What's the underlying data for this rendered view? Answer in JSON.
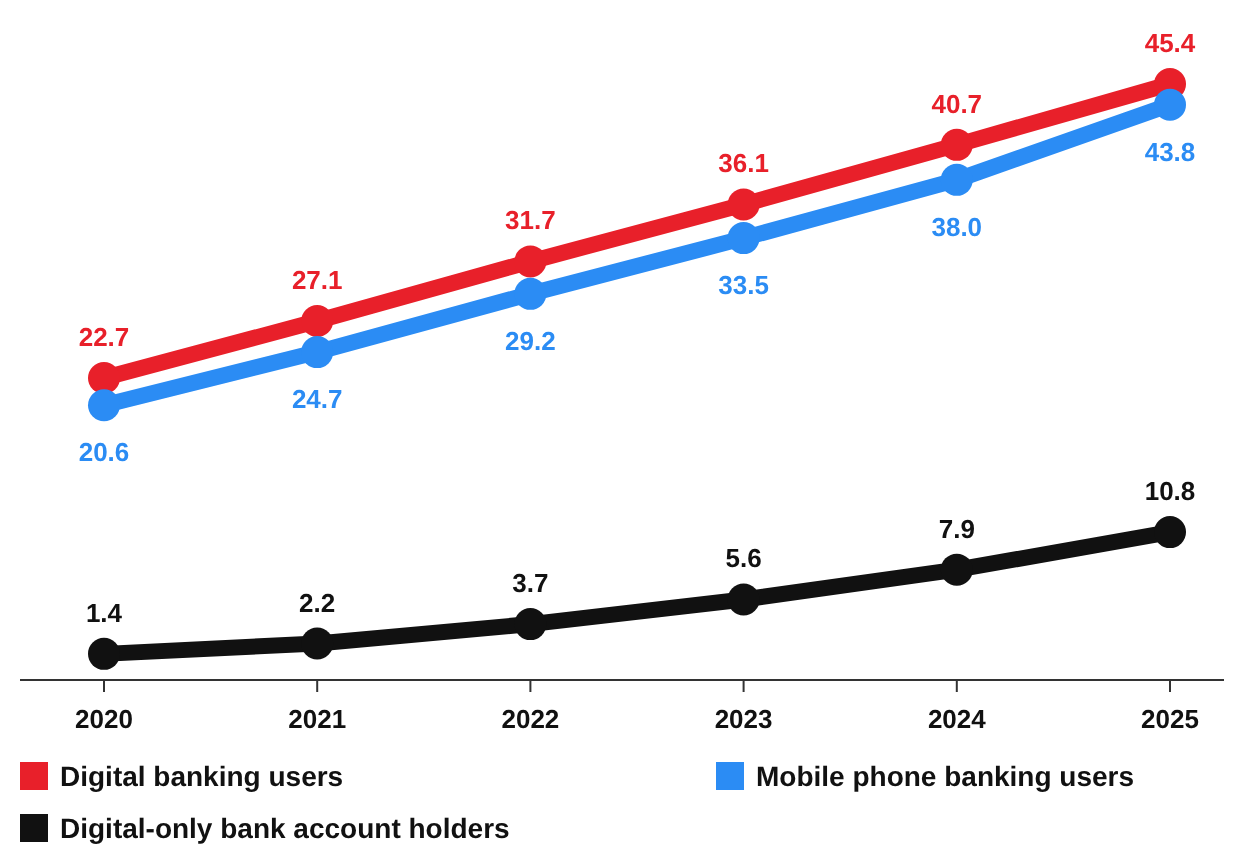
{
  "chart_data": {
    "type": "line",
    "categories": [
      "2020",
      "2021",
      "2022",
      "2023",
      "2024",
      "2025"
    ],
    "series": [
      {
        "name": "Digital banking users",
        "color": "#e8202a",
        "values": [
          22.7,
          27.1,
          31.7,
          36.1,
          40.7,
          45.4
        ]
      },
      {
        "name": "Mobile phone banking users",
        "color": "#2b8cf4",
        "values": [
          20.6,
          24.7,
          29.2,
          33.5,
          38.0,
          43.8
        ],
        "value_labels": [
          "20.6",
          "24.7",
          "29.2",
          "33.5",
          "38.0",
          "43.8"
        ]
      },
      {
        "name": "Digital-only bank account holders",
        "color": "#111111",
        "values": [
          1.4,
          2.2,
          3.7,
          5.6,
          7.9,
          10.8
        ]
      }
    ],
    "data_labels": true,
    "legend": "bottom",
    "marker": "circle",
    "grid": false
  }
}
